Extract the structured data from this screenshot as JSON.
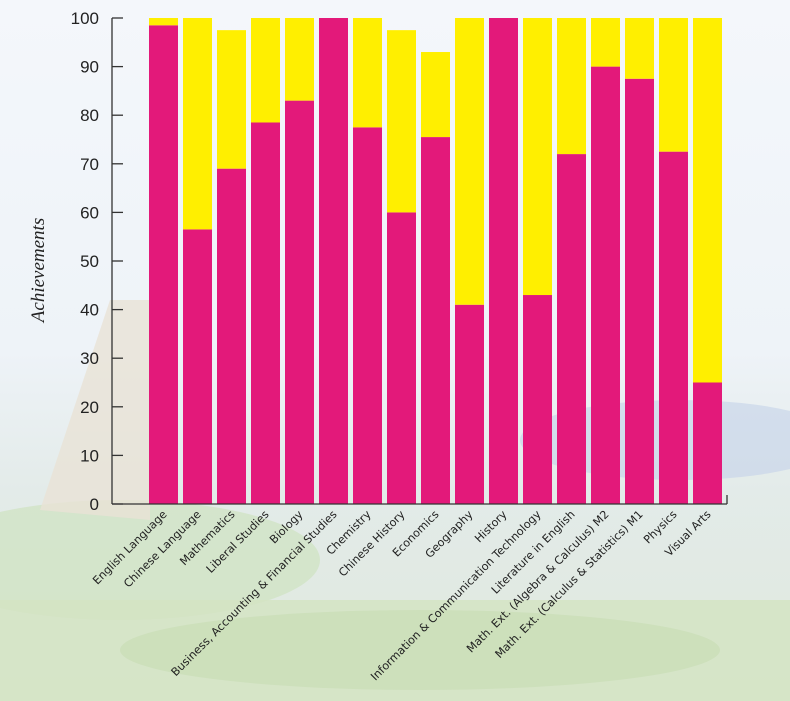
{
  "colors": {
    "segment_bottom": "#e3197a",
    "segment_top": "#ffef00"
  },
  "chart_data": {
    "type": "bar",
    "stacked": true,
    "title": "",
    "xlabel": "",
    "ylabel": "Achievements",
    "ylim": [
      0,
      100
    ],
    "yticks": [
      0,
      10,
      20,
      30,
      40,
      50,
      60,
      70,
      80,
      90,
      100
    ],
    "categories": [
      "English Language",
      "Chinese Language",
      "Mathematics",
      "Liberal Studies",
      "Biology",
      "Business, Accounting & Financial Studies",
      "Chemistry",
      "Chinese History",
      "Economics",
      "Geography",
      "History",
      "Information & Communication Technology",
      "Literature in English",
      "Math. Ext. (Algebra & Calculus) M2",
      "Math. Ext. (Calculus & Statistics) M1",
      "Physics",
      "Visual Arts"
    ],
    "series": [
      {
        "name": "bottom",
        "values": [
          98.5,
          56.5,
          69,
          78.5,
          83,
          100,
          77.5,
          60,
          75.5,
          41,
          100,
          43,
          72,
          90,
          87.5,
          72.5,
          25
        ]
      },
      {
        "name": "top",
        "values": [
          1.5,
          43.5,
          28.5,
          21.5,
          17,
          0,
          22.5,
          37.5,
          17.5,
          59,
          0,
          57,
          28,
          10,
          12.5,
          27.5,
          75
        ]
      }
    ]
  }
}
